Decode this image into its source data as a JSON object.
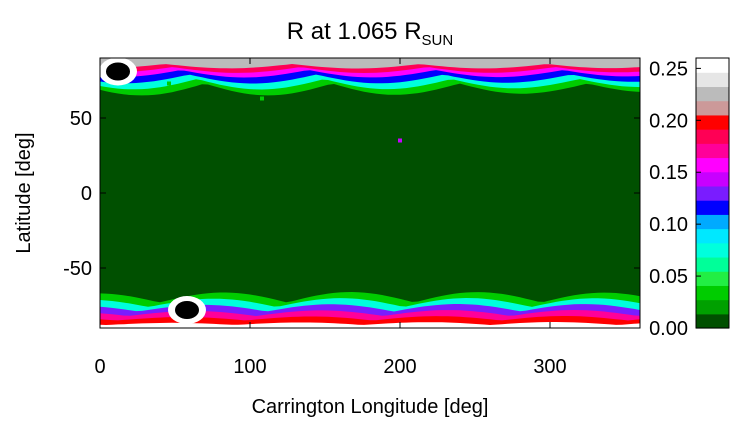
{
  "chart_data": {
    "type": "heatmap",
    "title_main": "R at 1.065 R",
    "title_sub": "SUN",
    "xlabel": "Carrington Longitude [deg]",
    "ylabel": "Latitude [deg]",
    "xlim": [
      0,
      360
    ],
    "ylim": [
      -90,
      90
    ],
    "x_ticks": [
      0,
      100,
      200,
      300
    ],
    "y_ticks": [
      50,
      0,
      -50
    ],
    "grid": false,
    "background_value": 0.0,
    "colorbar": {
      "range": [
        0.0,
        0.26
      ],
      "ticks": [
        "0.00",
        "0.05",
        "0.10",
        "0.15",
        "0.20",
        "0.25"
      ],
      "tick_values": [
        0.0,
        0.05,
        0.1,
        0.15,
        0.2,
        0.25
      ],
      "colors": [
        "#005000",
        "#00a000",
        "#00cc00",
        "#22ee44",
        "#00ff99",
        "#00ffdd",
        "#00e8ff",
        "#00aaff",
        "#0000ff",
        "#7a1cff",
        "#c800ff",
        "#ff00ff",
        "#ff0099",
        "#ff0055",
        "#ff0000",
        "#cc9999",
        "#bbbbbb",
        "#e6e6e6",
        "#ffffff"
      ]
    },
    "features": [
      {
        "label": "north polar hole",
        "lon": 12,
        "lat": 81,
        "value": 0.26
      },
      {
        "label": "south polar hole",
        "lon": 58,
        "lat": -78,
        "value": 0.26
      },
      {
        "label": "spot",
        "lon": 200,
        "lat": 35,
        "value": 0.15
      },
      {
        "label": "spot",
        "lon": 108,
        "lat": 63,
        "value": 0.04
      },
      {
        "label": "spot",
        "lon": 46,
        "lat": 73,
        "value": 0.04
      }
    ]
  }
}
